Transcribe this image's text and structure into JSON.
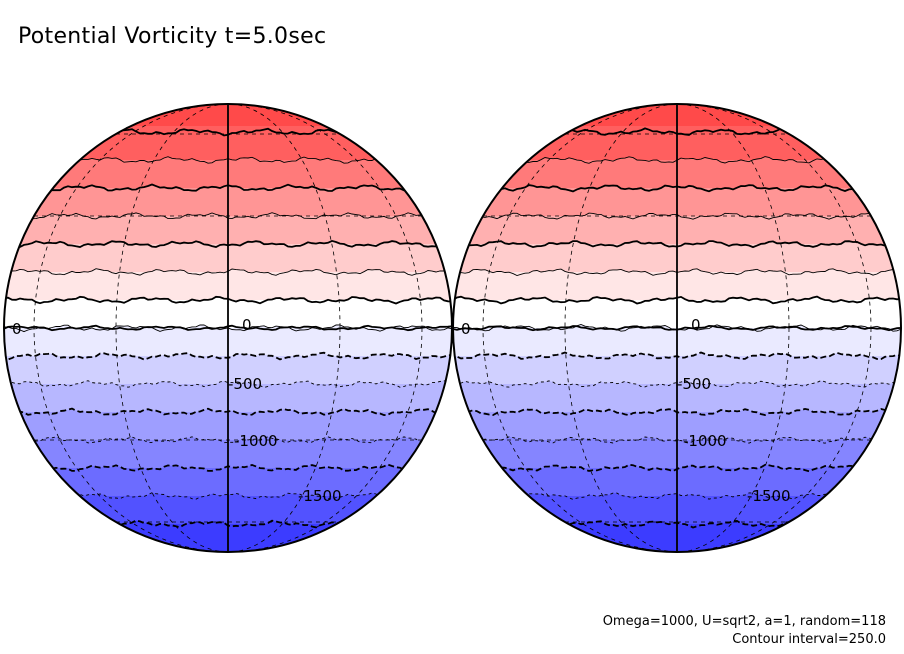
{
  "title": "Potential Vorticity t=5.0sec",
  "footer": {
    "params": "Omega=1000, U=sqrt2, a=1, random=118",
    "contour_interval": "Contour interval=250.0"
  },
  "colors": {
    "north_max": "#ff3b3b",
    "equator": "#ffffff",
    "south_max": "#3c3cff",
    "contour": "#000000"
  },
  "globes": [
    {
      "name": "left-hemisphere",
      "contour_labels": [
        "0",
        "0",
        "-500",
        "-1000",
        "-1500"
      ]
    },
    {
      "name": "right-hemisphere",
      "contour_labels": [
        "0",
        "0",
        "-500",
        "-1000",
        "-1500"
      ]
    }
  ],
  "color_bands": [
    {
      "color": "#ff4a4a"
    },
    {
      "color": "#ff5f5f"
    },
    {
      "color": "#ff7a7a"
    },
    {
      "color": "#ff9595"
    },
    {
      "color": "#ffb0b0"
    },
    {
      "color": "#ffcccc"
    },
    {
      "color": "#ffe6e6"
    },
    {
      "color": "#ffffff"
    },
    {
      "color": "#eaeaff"
    },
    {
      "color": "#d0d0ff"
    },
    {
      "color": "#b7b7ff"
    },
    {
      "color": "#9e9eff"
    },
    {
      "color": "#8585ff"
    },
    {
      "color": "#6c6cff"
    },
    {
      "color": "#5252ff"
    },
    {
      "color": "#3c3cff"
    }
  ]
}
